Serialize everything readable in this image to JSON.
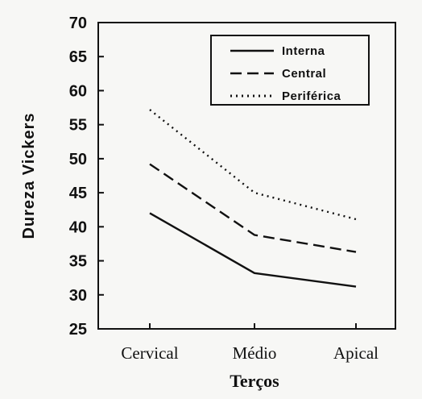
{
  "chart_data": {
    "type": "line",
    "title": "",
    "xlabel": "Terços",
    "ylabel": "Dureza Vickers",
    "categories": [
      "Cervical",
      "Médio",
      "Apical"
    ],
    "ylim": [
      25,
      70
    ],
    "yticks": [
      25,
      30,
      35,
      40,
      45,
      50,
      55,
      60,
      65,
      70
    ],
    "grid": false,
    "legend_position": "top-right",
    "series": [
      {
        "name": "Interna",
        "style": "solid",
        "values": [
          42,
          33.2,
          31.2
        ]
      },
      {
        "name": "Central",
        "style": "dashed",
        "values": [
          49.2,
          38.8,
          36.3
        ]
      },
      {
        "name": "Periférica",
        "style": "dotted",
        "values": [
          57.2,
          45,
          41.1
        ]
      }
    ]
  }
}
